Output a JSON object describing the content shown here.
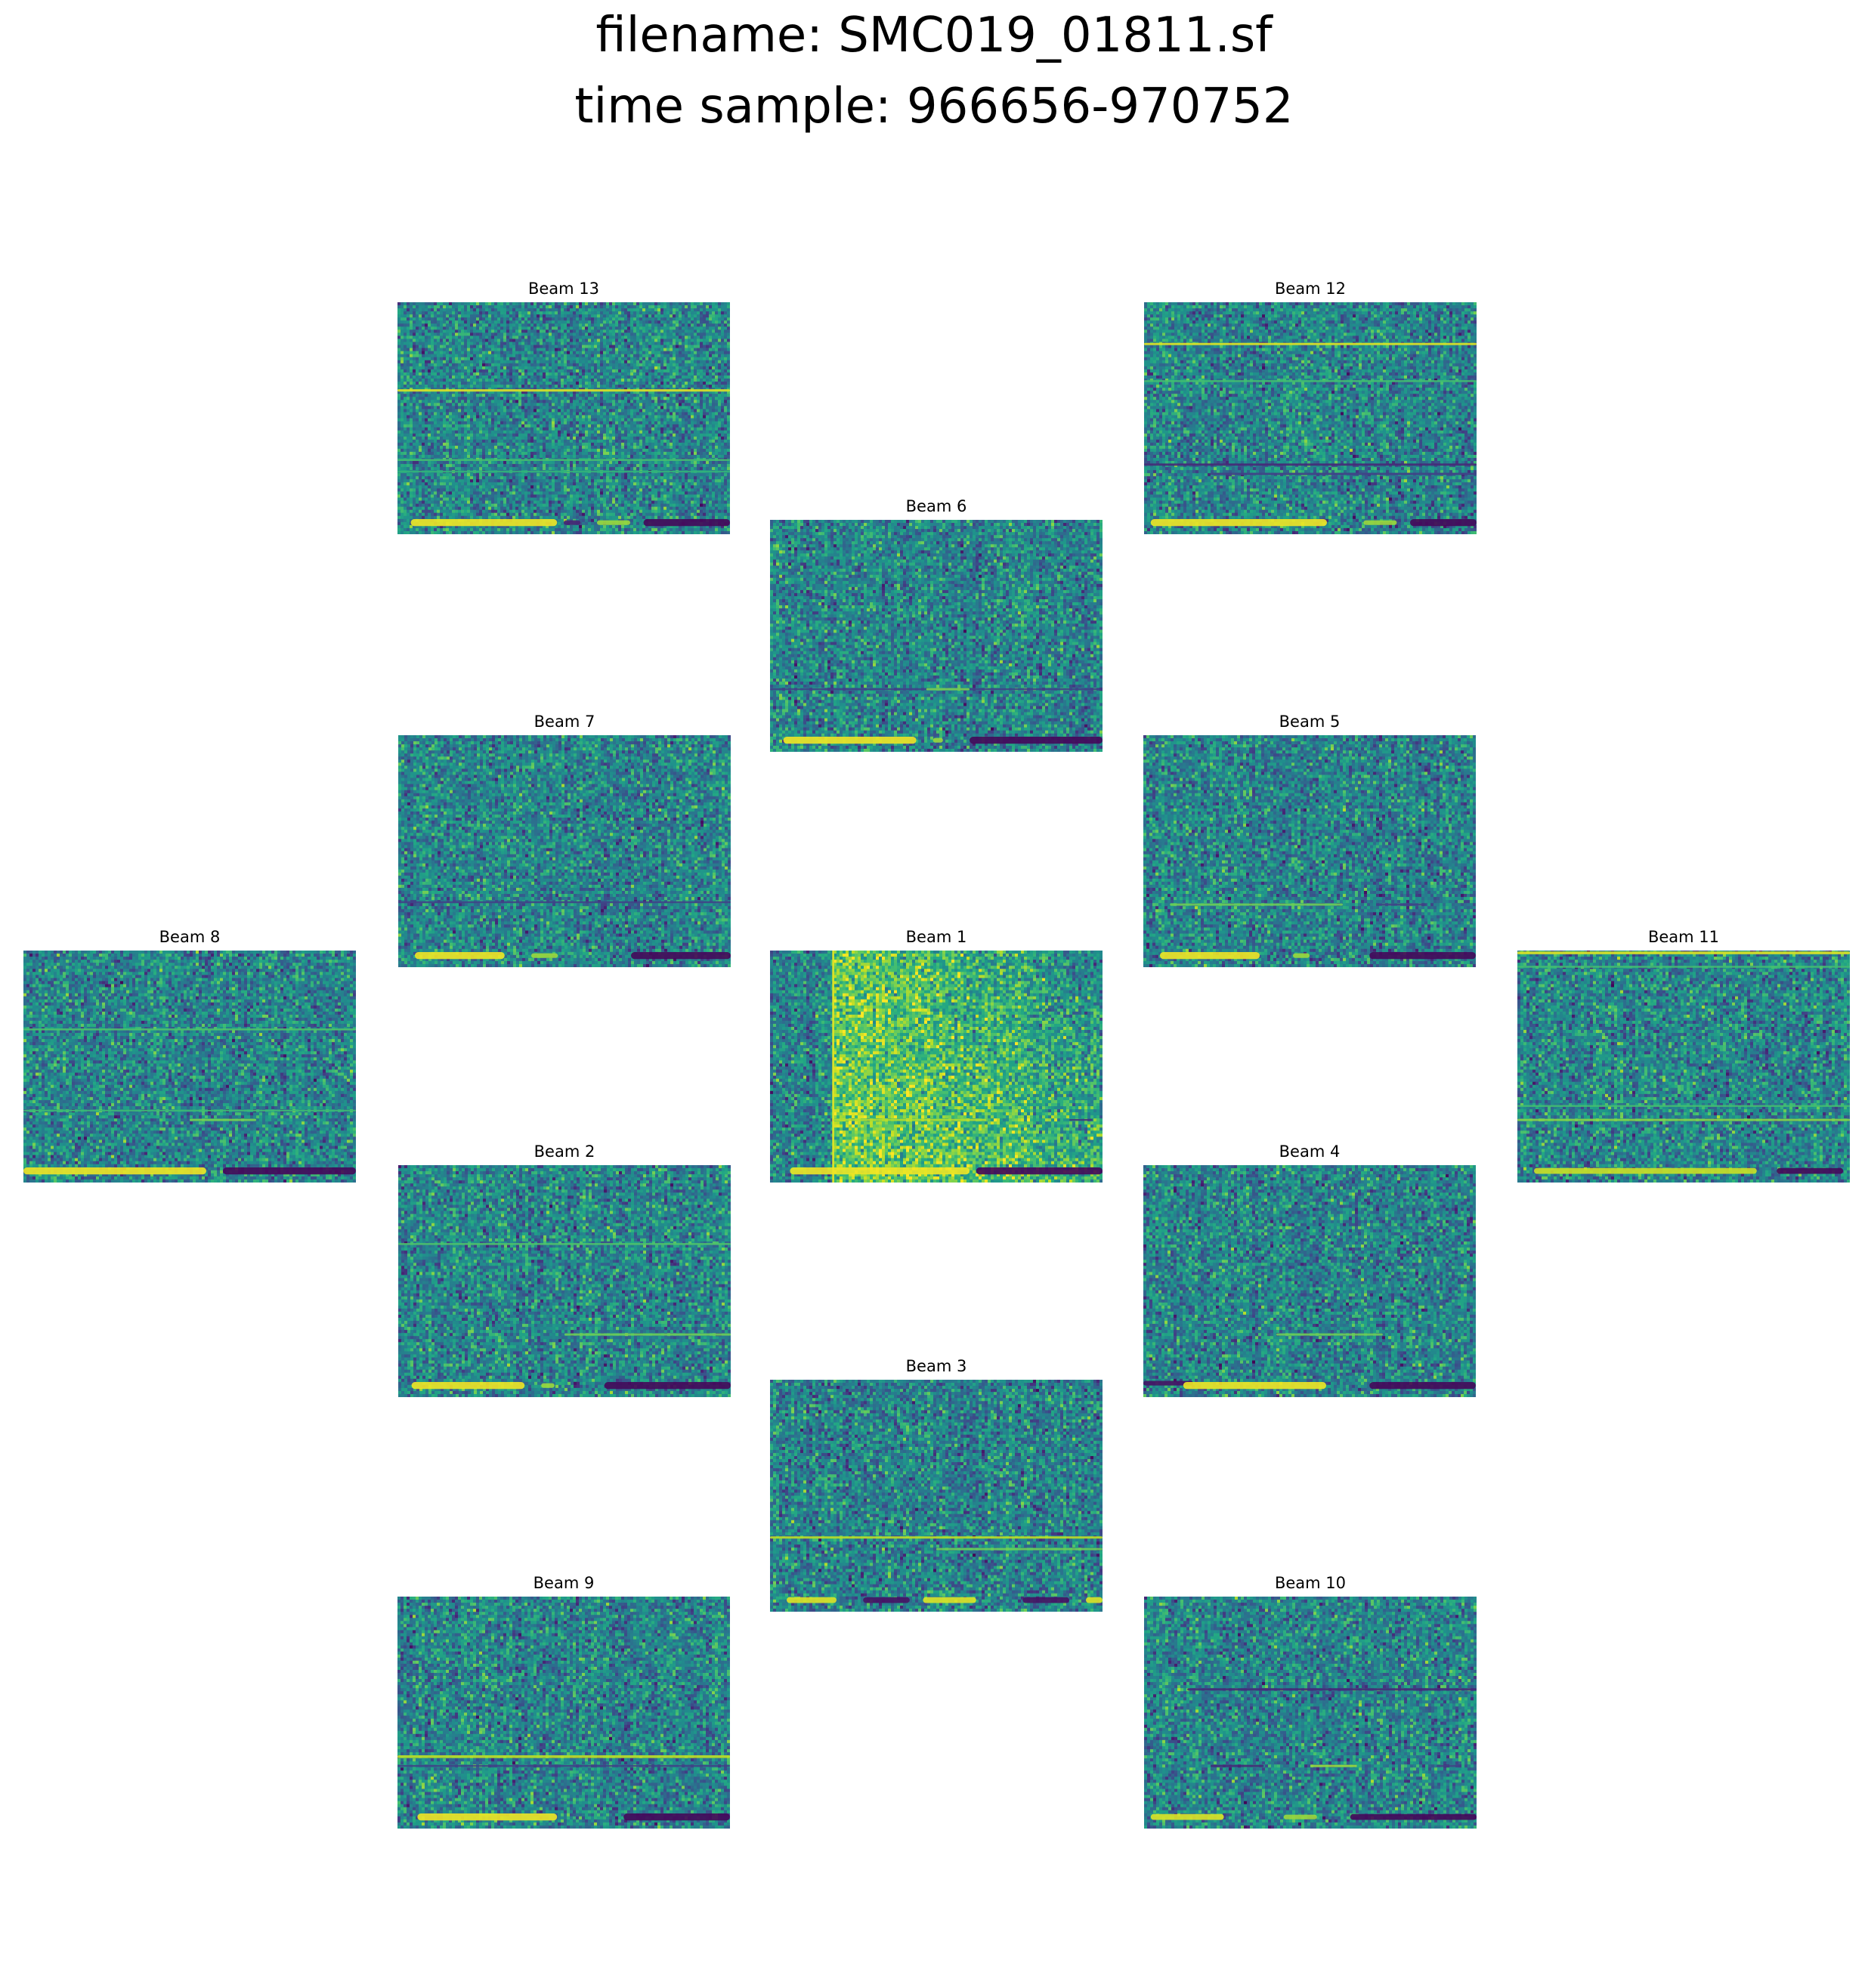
{
  "figure": {
    "title_line1": "filename: SMC019_01811.sf",
    "title_line2": "time sample: 966656-970752"
  },
  "colors": {
    "background": "#ffffff",
    "colormap": "viridis",
    "low": "#440154",
    "mid": "#21918c",
    "high": "#fde725"
  },
  "chart_data": {
    "type": "heatmap",
    "colormap": "viridis",
    "axes_visible": false,
    "panels": [
      {
        "id": "beam-13",
        "title": "Beam 13",
        "features": [
          {
            "kind": "hline",
            "y": 0.38,
            "w": 0.01,
            "level": 0.95,
            "x0": 0,
            "x1": 1
          },
          {
            "kind": "hline",
            "y": 0.68,
            "w": 0.008,
            "level": 0.7,
            "x0": 0,
            "x1": 1
          },
          {
            "kind": "hline",
            "y": 0.73,
            "w": 0.008,
            "level": 0.65,
            "x0": 0,
            "x1": 1
          },
          {
            "kind": "hline",
            "y": 0.95,
            "w": 0.03,
            "level": 0.98,
            "x0": 0.04,
            "x1": 0.48
          },
          {
            "kind": "hline",
            "y": 0.95,
            "w": 0.02,
            "level": 0.85,
            "x0": 0.6,
            "x1": 0.7
          },
          {
            "kind": "hline",
            "y": 0.95,
            "w": 0.03,
            "level": 0.02,
            "x0": 0.74,
            "x1": 1
          },
          {
            "kind": "hline",
            "y": 0.95,
            "w": 0.02,
            "level": 0.1,
            "x0": 0.5,
            "x1": 0.55
          }
        ]
      },
      {
        "id": "beam-12",
        "title": "Beam 12",
        "features": [
          {
            "kind": "hline",
            "y": 0.18,
            "w": 0.01,
            "level": 0.95,
            "x0": 0,
            "x1": 1
          },
          {
            "kind": "hline",
            "y": 0.34,
            "w": 0.008,
            "level": 0.7,
            "x0": 0,
            "x1": 1
          },
          {
            "kind": "hline",
            "y": 0.7,
            "w": 0.01,
            "level": 0.12,
            "x0": 0,
            "x1": 1
          },
          {
            "kind": "hline",
            "y": 0.74,
            "w": 0.01,
            "level": 0.2,
            "x0": 0.2,
            "x1": 1
          },
          {
            "kind": "hline",
            "y": 0.95,
            "w": 0.03,
            "level": 0.98,
            "x0": 0.02,
            "x1": 0.55
          },
          {
            "kind": "hline",
            "y": 0.95,
            "w": 0.02,
            "level": 0.85,
            "x0": 0.66,
            "x1": 0.76
          },
          {
            "kind": "hline",
            "y": 0.95,
            "w": 0.03,
            "level": 0.02,
            "x0": 0.8,
            "x1": 1
          }
        ]
      },
      {
        "id": "beam-6",
        "title": "Beam 6",
        "features": [
          {
            "kind": "hline",
            "y": 0.73,
            "w": 0.008,
            "level": 0.2,
            "x0": 0,
            "x1": 1
          },
          {
            "kind": "hline",
            "y": 0.73,
            "w": 0.01,
            "level": 0.8,
            "x0": 0.47,
            "x1": 0.6
          },
          {
            "kind": "hline",
            "y": 0.95,
            "w": 0.03,
            "level": 0.98,
            "x0": 0.04,
            "x1": 0.44
          },
          {
            "kind": "hline",
            "y": 0.95,
            "w": 0.02,
            "level": 0.85,
            "x0": 0.49,
            "x1": 0.52
          },
          {
            "kind": "hline",
            "y": 0.95,
            "w": 0.03,
            "level": 0.02,
            "x0": 0.6,
            "x1": 1
          }
        ]
      },
      {
        "id": "beam-7",
        "title": "Beam 7",
        "features": [
          {
            "kind": "hline",
            "y": 0.72,
            "w": 0.008,
            "level": 0.2,
            "x0": 0,
            "x1": 1
          },
          {
            "kind": "hline",
            "y": 0.95,
            "w": 0.03,
            "level": 0.98,
            "x0": 0.05,
            "x1": 0.32
          },
          {
            "kind": "hline",
            "y": 0.95,
            "w": 0.02,
            "level": 0.85,
            "x0": 0.4,
            "x1": 0.48
          },
          {
            "kind": "hline",
            "y": 0.95,
            "w": 0.03,
            "level": 0.02,
            "x0": 0.7,
            "x1": 1
          }
        ]
      },
      {
        "id": "beam-5",
        "title": "Beam 5",
        "features": [
          {
            "kind": "hline",
            "y": 0.73,
            "w": 0.01,
            "level": 0.78,
            "x0": 0.08,
            "x1": 0.6
          },
          {
            "kind": "hline",
            "y": 0.73,
            "w": 0.01,
            "level": 0.2,
            "x0": 0.7,
            "x1": 0.85
          },
          {
            "kind": "hline",
            "y": 0.95,
            "w": 0.03,
            "level": 0.98,
            "x0": 0.05,
            "x1": 0.35
          },
          {
            "kind": "hline",
            "y": 0.95,
            "w": 0.02,
            "level": 0.85,
            "x0": 0.45,
            "x1": 0.5
          },
          {
            "kind": "hline",
            "y": 0.95,
            "w": 0.03,
            "level": 0.02,
            "x0": 0.68,
            "x1": 1
          }
        ]
      },
      {
        "id": "beam-8",
        "title": "Beam 8",
        "features": [
          {
            "kind": "hline",
            "y": 0.34,
            "w": 0.008,
            "level": 0.72,
            "x0": 0,
            "x1": 1
          },
          {
            "kind": "hline",
            "y": 0.69,
            "w": 0.008,
            "level": 0.68,
            "x0": 0,
            "x1": 1
          },
          {
            "kind": "hline",
            "y": 0.73,
            "w": 0.01,
            "level": 0.8,
            "x0": 0.5,
            "x1": 0.7
          },
          {
            "kind": "hline",
            "y": 0.95,
            "w": 0.03,
            "level": 0.98,
            "x0": 0,
            "x1": 0.55
          },
          {
            "kind": "hline",
            "y": 0.95,
            "w": 0.03,
            "level": 0.02,
            "x0": 0.6,
            "x1": 1
          }
        ]
      },
      {
        "id": "beam-1",
        "title": "Beam 1",
        "features": [
          {
            "kind": "burst",
            "x0": 0.19,
            "x1": 1,
            "level": 0.82
          },
          {
            "kind": "vline",
            "x": 0.19,
            "w": 0.006,
            "level": 0.95
          },
          {
            "kind": "hline",
            "y": 0.73,
            "w": 0.01,
            "level": 0.88,
            "x0": 0.19,
            "x1": 0.65
          },
          {
            "kind": "hline",
            "y": 0.73,
            "w": 0.008,
            "level": 0.15,
            "x0": 0.9,
            "x1": 0.97
          },
          {
            "kind": "hline",
            "y": 0.95,
            "w": 0.03,
            "level": 0.98,
            "x0": 0.06,
            "x1": 0.6
          },
          {
            "kind": "hline",
            "y": 0.95,
            "w": 0.03,
            "level": 0.02,
            "x0": 0.62,
            "x1": 1
          }
        ]
      },
      {
        "id": "beam-11",
        "title": "Beam 11",
        "features": [
          {
            "kind": "hline",
            "y": 0.01,
            "w": 0.012,
            "level": 0.95,
            "x0": 0,
            "x1": 1
          },
          {
            "kind": "hline",
            "y": 0.07,
            "w": 0.008,
            "level": 0.7,
            "x0": 0,
            "x1": 1
          },
          {
            "kind": "hline",
            "y": 0.67,
            "w": 0.008,
            "level": 0.7,
            "x0": 0,
            "x1": 1
          },
          {
            "kind": "hline",
            "y": 0.73,
            "w": 0.01,
            "level": 0.82,
            "x0": 0,
            "x1": 1
          },
          {
            "kind": "hline",
            "y": 0.95,
            "w": 0.025,
            "level": 0.92,
            "x0": 0.05,
            "x1": 0.72
          },
          {
            "kind": "hline",
            "y": 0.95,
            "w": 0.025,
            "level": 0.02,
            "x0": 0.78,
            "x1": 0.98
          }
        ]
      },
      {
        "id": "beam-2",
        "title": "Beam 2",
        "features": [
          {
            "kind": "hline",
            "y": 0.34,
            "w": 0.008,
            "level": 0.72,
            "x0": 0,
            "x1": 1
          },
          {
            "kind": "hline",
            "y": 0.73,
            "w": 0.01,
            "level": 0.78,
            "x0": 0.5,
            "x1": 1
          },
          {
            "kind": "hline",
            "y": 0.95,
            "w": 0.03,
            "level": 0.98,
            "x0": 0.04,
            "x1": 0.38
          },
          {
            "kind": "hline",
            "y": 0.95,
            "w": 0.02,
            "level": 0.85,
            "x0": 0.43,
            "x1": 0.47
          },
          {
            "kind": "hline",
            "y": 0.95,
            "w": 0.03,
            "level": 0.02,
            "x0": 0.62,
            "x1": 1
          }
        ]
      },
      {
        "id": "beam-4",
        "title": "Beam 4",
        "features": [
          {
            "kind": "hline",
            "y": 0.73,
            "w": 0.01,
            "level": 0.78,
            "x0": 0.4,
            "x1": 0.72
          },
          {
            "kind": "hline",
            "y": 0.94,
            "w": 0.02,
            "level": 0.05,
            "x0": 0,
            "x1": 0.15
          },
          {
            "kind": "hline",
            "y": 0.95,
            "w": 0.03,
            "level": 0.98,
            "x0": 0.12,
            "x1": 0.55
          },
          {
            "kind": "hline",
            "y": 0.95,
            "w": 0.03,
            "level": 0.02,
            "x0": 0.68,
            "x1": 1
          }
        ]
      },
      {
        "id": "beam-3",
        "title": "Beam 3",
        "features": [
          {
            "kind": "hline",
            "y": 0.68,
            "w": 0.01,
            "level": 0.9,
            "x0": 0,
            "x1": 1
          },
          {
            "kind": "hline",
            "y": 0.73,
            "w": 0.01,
            "level": 0.78,
            "x0": 0.5,
            "x1": 1
          },
          {
            "kind": "hline",
            "y": 0.95,
            "w": 0.025,
            "level": 0.95,
            "x0": 0.05,
            "x1": 0.2
          },
          {
            "kind": "hline",
            "y": 0.95,
            "w": 0.025,
            "level": 0.05,
            "x0": 0.28,
            "x1": 0.42
          },
          {
            "kind": "hline",
            "y": 0.95,
            "w": 0.025,
            "level": 0.95,
            "x0": 0.46,
            "x1": 0.62
          },
          {
            "kind": "hline",
            "y": 0.95,
            "w": 0.025,
            "level": 0.05,
            "x0": 0.76,
            "x1": 0.9
          },
          {
            "kind": "hline",
            "y": 0.95,
            "w": 0.025,
            "level": 0.95,
            "x0": 0.95,
            "x1": 1
          }
        ]
      },
      {
        "id": "beam-9",
        "title": "Beam 9",
        "features": [
          {
            "kind": "hline",
            "y": 0.69,
            "w": 0.012,
            "level": 0.9,
            "x0": 0,
            "x1": 1
          },
          {
            "kind": "hline",
            "y": 0.73,
            "w": 0.008,
            "level": 0.2,
            "x0": 0,
            "x1": 1
          },
          {
            "kind": "hline",
            "y": 0.95,
            "w": 0.03,
            "level": 0.98,
            "x0": 0.06,
            "x1": 0.48
          },
          {
            "kind": "hline",
            "y": 0.95,
            "w": 0.03,
            "level": 0.02,
            "x0": 0.68,
            "x1": 1
          }
        ]
      },
      {
        "id": "beam-10",
        "title": "Beam 10",
        "features": [
          {
            "kind": "hline",
            "y": 0.4,
            "w": 0.01,
            "level": 0.12,
            "x0": 0.13,
            "x1": 1
          },
          {
            "kind": "hline",
            "y": 0.73,
            "w": 0.01,
            "level": 0.12,
            "x0": 0.2,
            "x1": 0.36
          },
          {
            "kind": "hline",
            "y": 0.73,
            "w": 0.01,
            "level": 0.85,
            "x0": 0.5,
            "x1": 0.64
          },
          {
            "kind": "hline",
            "y": 0.73,
            "w": 0.01,
            "level": 0.2,
            "x0": 0.88,
            "x1": 0.95
          },
          {
            "kind": "hline",
            "y": 0.95,
            "w": 0.025,
            "level": 0.95,
            "x0": 0.02,
            "x1": 0.24
          },
          {
            "kind": "hline",
            "y": 0.95,
            "w": 0.02,
            "level": 0.85,
            "x0": 0.42,
            "x1": 0.52
          },
          {
            "kind": "hline",
            "y": 0.95,
            "w": 0.025,
            "level": 0.02,
            "x0": 0.62,
            "x1": 1
          }
        ]
      }
    ]
  }
}
